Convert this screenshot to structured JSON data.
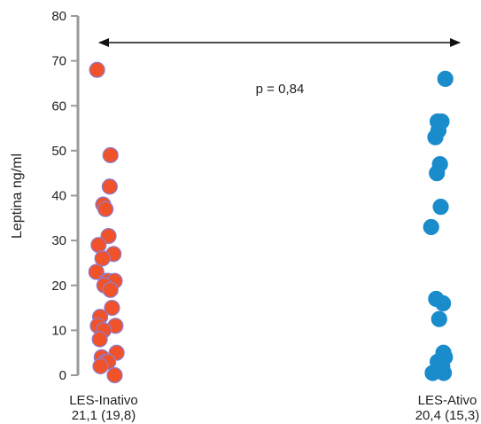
{
  "chart_data": {
    "type": "scatter",
    "ylabel": "Leptina ng/ml",
    "ylim": [
      0,
      80
    ],
    "yticks": [
      0,
      10,
      20,
      30,
      40,
      50,
      60,
      70,
      80
    ],
    "grid": false,
    "annotation": "p = 0,84",
    "groups": [
      {
        "label_line1": "LES-Inativo",
        "label_line2": "21,1 (19,8)",
        "color": "#f0522a",
        "edge_color": "#8a7fd6",
        "points": [
          {
            "x": 1.0,
            "y": 68
          },
          {
            "x": 1.35,
            "y": 49
          },
          {
            "x": 1.33,
            "y": 42
          },
          {
            "x": 1.16,
            "y": 38
          },
          {
            "x": 1.22,
            "y": 37
          },
          {
            "x": 1.3,
            "y": 31
          },
          {
            "x": 1.04,
            "y": 29
          },
          {
            "x": 1.43,
            "y": 27
          },
          {
            "x": 1.14,
            "y": 26
          },
          {
            "x": 0.98,
            "y": 23
          },
          {
            "x": 1.24,
            "y": 21
          },
          {
            "x": 1.3,
            "y": 21
          },
          {
            "x": 1.46,
            "y": 21
          },
          {
            "x": 1.19,
            "y": 20
          },
          {
            "x": 1.35,
            "y": 19
          },
          {
            "x": 1.39,
            "y": 15
          },
          {
            "x": 1.08,
            "y": 13
          },
          {
            "x": 1.02,
            "y": 11
          },
          {
            "x": 1.48,
            "y": 11
          },
          {
            "x": 1.17,
            "y": 10
          },
          {
            "x": 1.07,
            "y": 8
          },
          {
            "x": 1.51,
            "y": 5
          },
          {
            "x": 1.12,
            "y": 4
          },
          {
            "x": 1.22,
            "y": 3
          },
          {
            "x": 1.29,
            "y": 3
          },
          {
            "x": 1.09,
            "y": 2
          },
          {
            "x": 1.46,
            "y": 0
          }
        ]
      },
      {
        "label_line1": "LES-Ativo",
        "label_line2": "20,4 (15,3)",
        "color": "#1a8ccc",
        "edge_color": "#1a8ccc",
        "points": [
          {
            "x": 10.1,
            "y": 66
          },
          {
            "x": 9.9,
            "y": 56.5
          },
          {
            "x": 10.0,
            "y": 56.5
          },
          {
            "x": 9.92,
            "y": 54.5
          },
          {
            "x": 9.84,
            "y": 53
          },
          {
            "x": 9.96,
            "y": 47
          },
          {
            "x": 9.88,
            "y": 45
          },
          {
            "x": 9.98,
            "y": 37.5
          },
          {
            "x": 9.73,
            "y": 33
          },
          {
            "x": 9.86,
            "y": 17
          },
          {
            "x": 10.04,
            "y": 16
          },
          {
            "x": 9.94,
            "y": 12.5
          },
          {
            "x": 10.05,
            "y": 5
          },
          {
            "x": 10.09,
            "y": 4
          },
          {
            "x": 9.9,
            "y": 3
          },
          {
            "x": 10.02,
            "y": 2
          },
          {
            "x": 9.77,
            "y": 0.5
          },
          {
            "x": 10.06,
            "y": 0.5
          }
        ]
      }
    ]
  }
}
